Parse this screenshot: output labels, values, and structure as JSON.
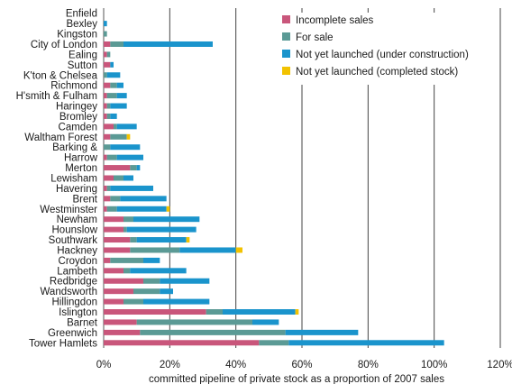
{
  "chart_data": {
    "type": "bar",
    "orientation": "horizontal",
    "stacked": true,
    "title": "",
    "xlabel": "committed pipeline of private stock as a proportion of 2007 sales",
    "ylabel": "",
    "xlim": [
      0,
      120
    ],
    "x_ticks": [
      0,
      20,
      40,
      60,
      80,
      100,
      120
    ],
    "x_tick_labels": [
      "0%",
      "20%",
      "40%",
      "60%",
      "80%",
      "100%",
      "120%"
    ],
    "grid": "vertical",
    "legend_position": "top-right",
    "categories": [
      "Enfield",
      "Bexley",
      "Kingston",
      "City of London",
      "Ealing",
      "Sutton",
      "K'ton & Chelsea",
      "Richmond",
      "H'smith & Fulham",
      "Haringey",
      "Bromley",
      "Camden",
      "Waltham Forest",
      "Barking &",
      "Harrow",
      "Merton",
      "Lewisham",
      "Havering",
      "Brent",
      "Westminster",
      "Newham",
      "Hounslow",
      "Southwark",
      "Hackney",
      "Croydon",
      "Lambeth",
      "Redbridge",
      "Wandsworth",
      "Hillingdon",
      "Islington",
      "Barnet",
      "Greenwich",
      "Tower Hamlets"
    ],
    "series": [
      {
        "name": "Incomplete sales",
        "color": "#c9567b",
        "values": [
          0,
          0,
          0,
          2,
          1,
          2,
          0,
          2,
          1,
          1,
          1,
          3,
          2,
          0,
          1,
          8,
          3,
          1,
          2,
          1,
          6,
          6,
          8,
          8,
          2,
          6,
          12,
          9,
          6,
          31,
          10,
          11,
          47
        ]
      },
      {
        "name": "For sale",
        "color": "#5b9a95",
        "values": [
          0,
          0,
          1,
          4,
          1,
          0,
          1,
          2,
          3,
          1,
          1,
          1,
          5,
          2,
          3,
          2,
          3,
          1,
          3,
          3,
          3,
          1,
          2,
          15,
          10,
          2,
          5,
          8,
          6,
          5,
          35,
          44,
          9
        ]
      },
      {
        "name": "Not yet launched (under construction)",
        "color": "#1a94cc",
        "values": [
          0,
          1,
          0,
          27,
          0,
          1,
          4,
          2,
          3,
          5,
          2,
          6,
          0,
          9,
          8,
          1,
          3,
          13,
          14,
          15,
          20,
          21,
          15,
          17,
          5,
          17,
          15,
          4,
          20,
          22,
          8,
          22,
          47
        ]
      },
      {
        "name": "Not yet launched (completed stock)",
        "color": "#f2c200",
        "values": [
          0,
          0,
          0,
          0,
          0,
          0,
          0,
          0,
          0,
          0,
          0,
          0,
          1,
          0,
          0,
          0,
          0,
          0,
          0,
          1,
          0,
          0,
          1,
          2,
          0,
          0,
          0,
          0,
          0,
          1,
          0,
          0,
          0
        ]
      }
    ]
  }
}
